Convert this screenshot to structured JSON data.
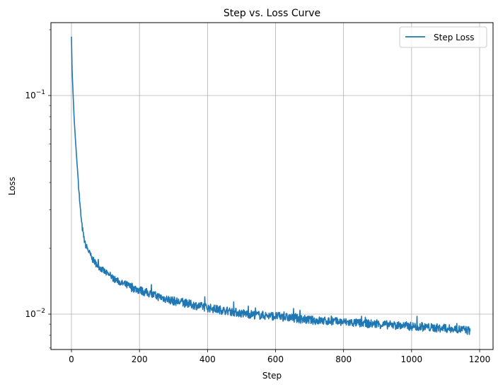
{
  "chart_data": {
    "type": "line",
    "title": "Step vs. Loss Curve",
    "xlabel": "Step",
    "ylabel": "Loss",
    "yscale": "log",
    "xlim": [
      -60,
      1230
    ],
    "ylim": [
      0.0069,
      0.215
    ],
    "grid": true,
    "legend_position": "upper right",
    "x_ticks": [
      0,
      200,
      400,
      600,
      800,
      1000,
      1200
    ],
    "x_tick_labels": [
      "0",
      "200",
      "400",
      "600",
      "800",
      "1000",
      "1200"
    ],
    "y_ticks": [
      0.01,
      0.1
    ],
    "y_tick_labels": [
      {
        "base": "10",
        "exp": "−2"
      },
      {
        "base": "10",
        "exp": "−1"
      }
    ],
    "series": [
      {
        "name": "Step Loss",
        "color": "#1f77b4",
        "x": [
          0,
          2,
          5,
          8,
          12,
          16,
          20,
          25,
          30,
          35,
          40,
          50,
          60,
          75,
          100,
          125,
          150,
          175,
          200,
          250,
          300,
          350,
          400,
          450,
          500,
          550,
          600,
          650,
          700,
          750,
          800,
          850,
          900,
          950,
          1000,
          1050,
          1100,
          1150,
          1172
        ],
        "values": [
          0.186,
          0.13,
          0.1,
          0.078,
          0.062,
          0.05,
          0.041,
          0.0315,
          0.026,
          0.023,
          0.021,
          0.0195,
          0.018,
          0.0168,
          0.0155,
          0.0145,
          0.0138,
          0.0133,
          0.0129,
          0.0121,
          0.0115,
          0.0111,
          0.0107,
          0.0104,
          0.0101,
          0.0099,
          0.0098,
          0.0096,
          0.0094,
          0.0093,
          0.0092,
          0.0091,
          0.009,
          0.0089,
          0.0088,
          0.0087,
          0.0086,
          0.0085,
          0.0084
        ]
      }
    ]
  },
  "legend": {
    "items": [
      {
        "label": "Step Loss",
        "color": "#1f77b4"
      }
    ]
  }
}
